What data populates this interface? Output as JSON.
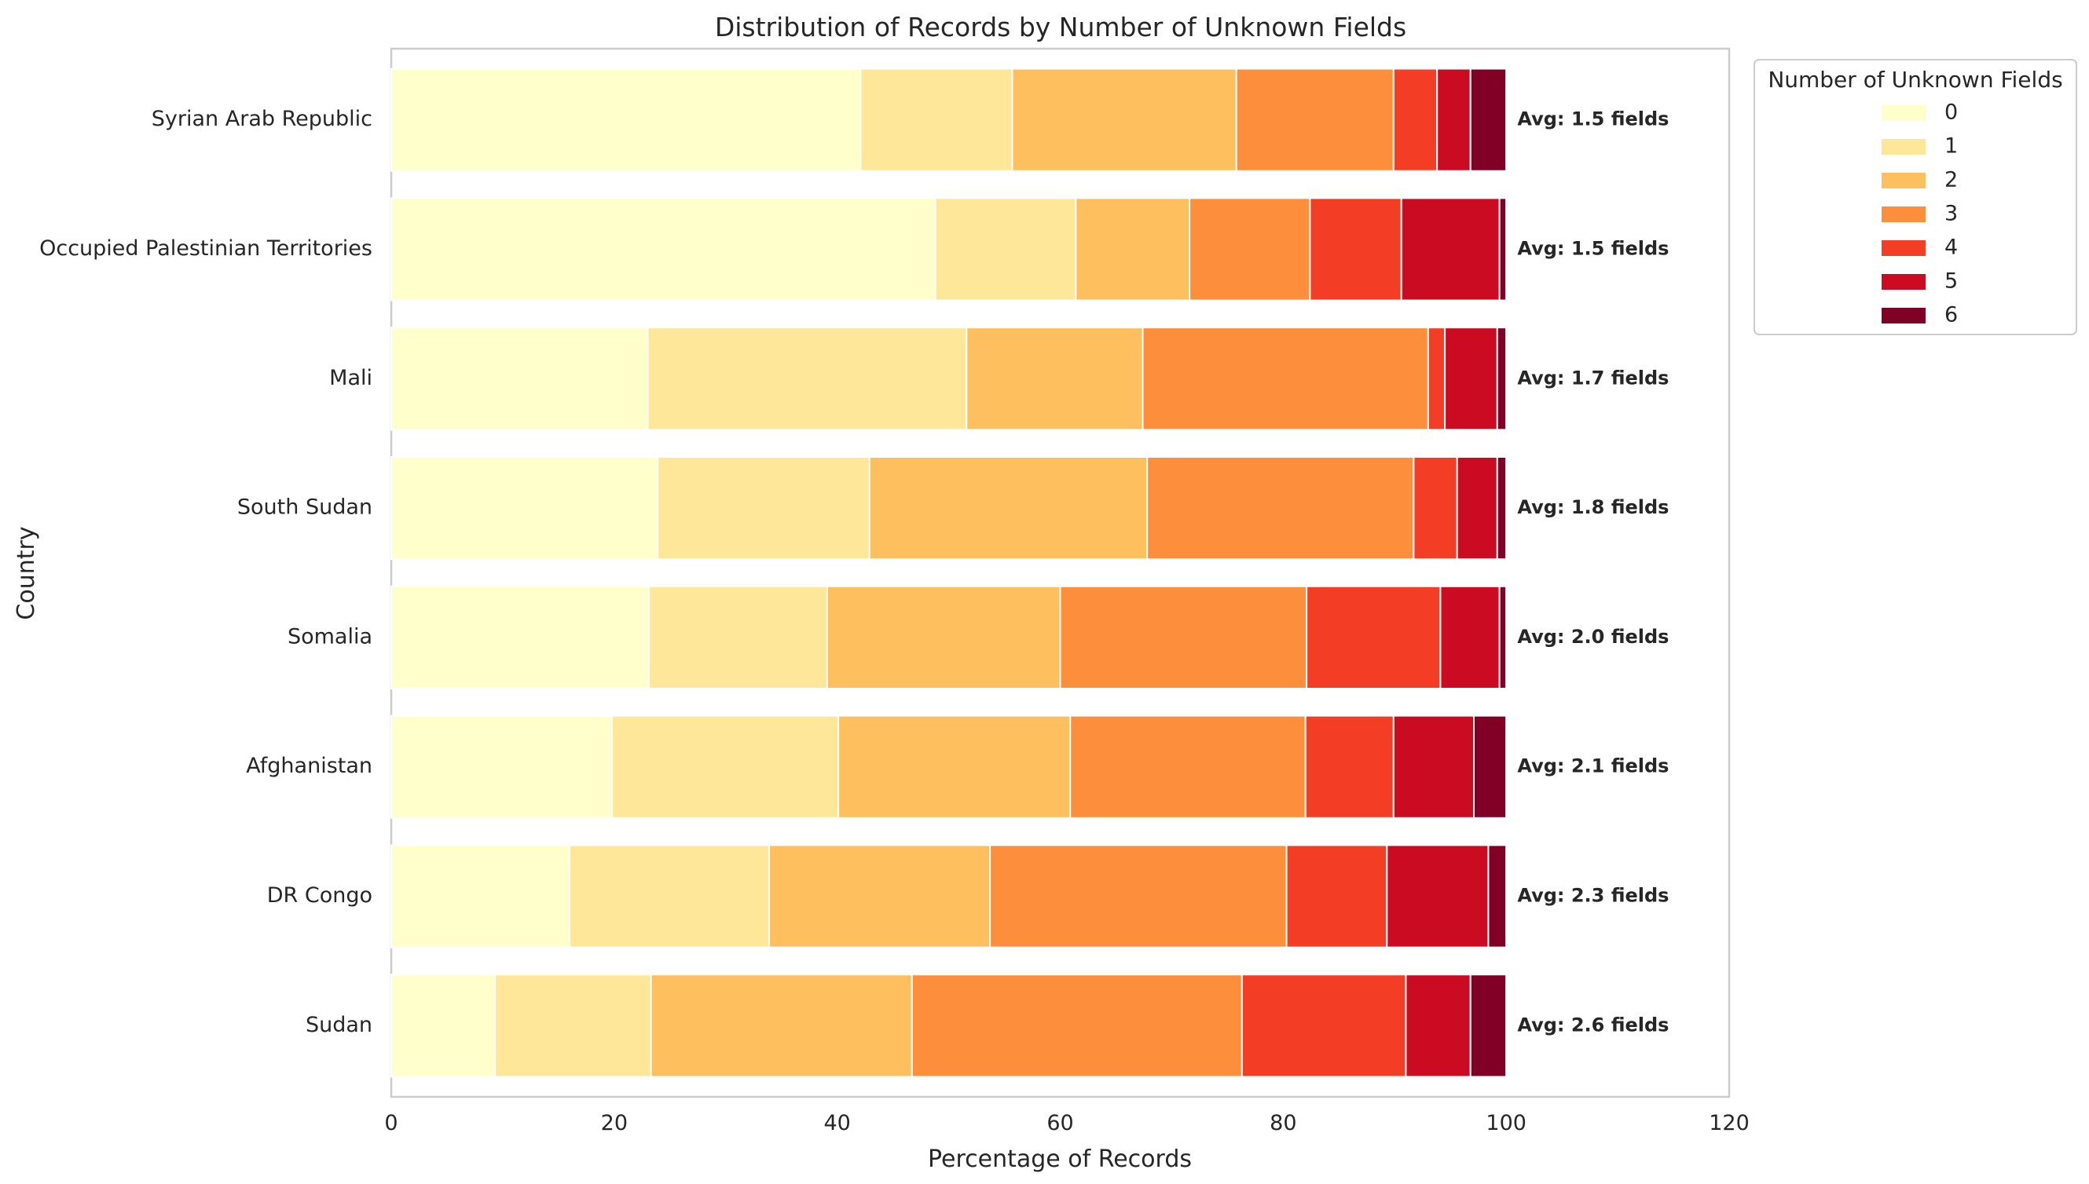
{
  "chart_data": {
    "type": "bar",
    "orientation": "horizontal",
    "stacked": true,
    "title": "Distribution of Records by Number of Unknown Fields",
    "xlabel": "Percentage of Records",
    "ylabel": "Country",
    "xlim": [
      0,
      120
    ],
    "xticks": [
      "0",
      "20",
      "40",
      "60",
      "80",
      "100",
      "120"
    ],
    "grid": false,
    "legend_title": "Number of Unknown Fields",
    "legend_position": "outside right, top",
    "categories": [
      "Syrian Arab Republic",
      "Occupied Palestinian Territories",
      "Mali",
      "South Sudan",
      "Somalia",
      "Afghanistan",
      "DR Congo",
      "Sudan"
    ],
    "series": [
      {
        "name": "0",
        "color": "#ffffcc",
        "values": [
          42.1,
          48.8,
          23.0,
          23.9,
          23.1,
          19.8,
          16.0,
          9.3
        ]
      },
      {
        "name": "1",
        "color": "#ffe799",
        "values": [
          13.6,
          12.6,
          28.6,
          19.0,
          16.0,
          20.3,
          17.9,
          14.0
        ]
      },
      {
        "name": "2",
        "color": "#fec05f",
        "values": [
          20.1,
          10.2,
          15.8,
          24.9,
          20.9,
          20.8,
          19.8,
          23.4
        ]
      },
      {
        "name": "3",
        "color": "#fd8e3c",
        "values": [
          14.1,
          10.8,
          25.6,
          23.9,
          22.1,
          21.1,
          26.6,
          29.6
        ]
      },
      {
        "name": "4",
        "color": "#f43d25",
        "values": [
          3.9,
          8.2,
          1.5,
          3.9,
          12.0,
          7.9,
          9.0,
          14.7
        ]
      },
      {
        "name": "5",
        "color": "#ca0b22",
        "values": [
          3.0,
          8.8,
          4.7,
          3.6,
          5.3,
          7.2,
          9.1,
          5.8
        ]
      },
      {
        "name": "6",
        "color": "#800026",
        "values": [
          3.2,
          0.6,
          0.8,
          0.8,
          0.6,
          2.9,
          1.6,
          3.2
        ]
      }
    ],
    "annotations": [
      "Avg: 1.5 fields",
      "Avg: 1.5 fields",
      "Avg: 1.7 fields",
      "Avg: 1.8 fields",
      "Avg: 2.0 fields",
      "Avg: 2.1 fields",
      "Avg: 2.3 fields",
      "Avg: 2.6 fields"
    ]
  }
}
